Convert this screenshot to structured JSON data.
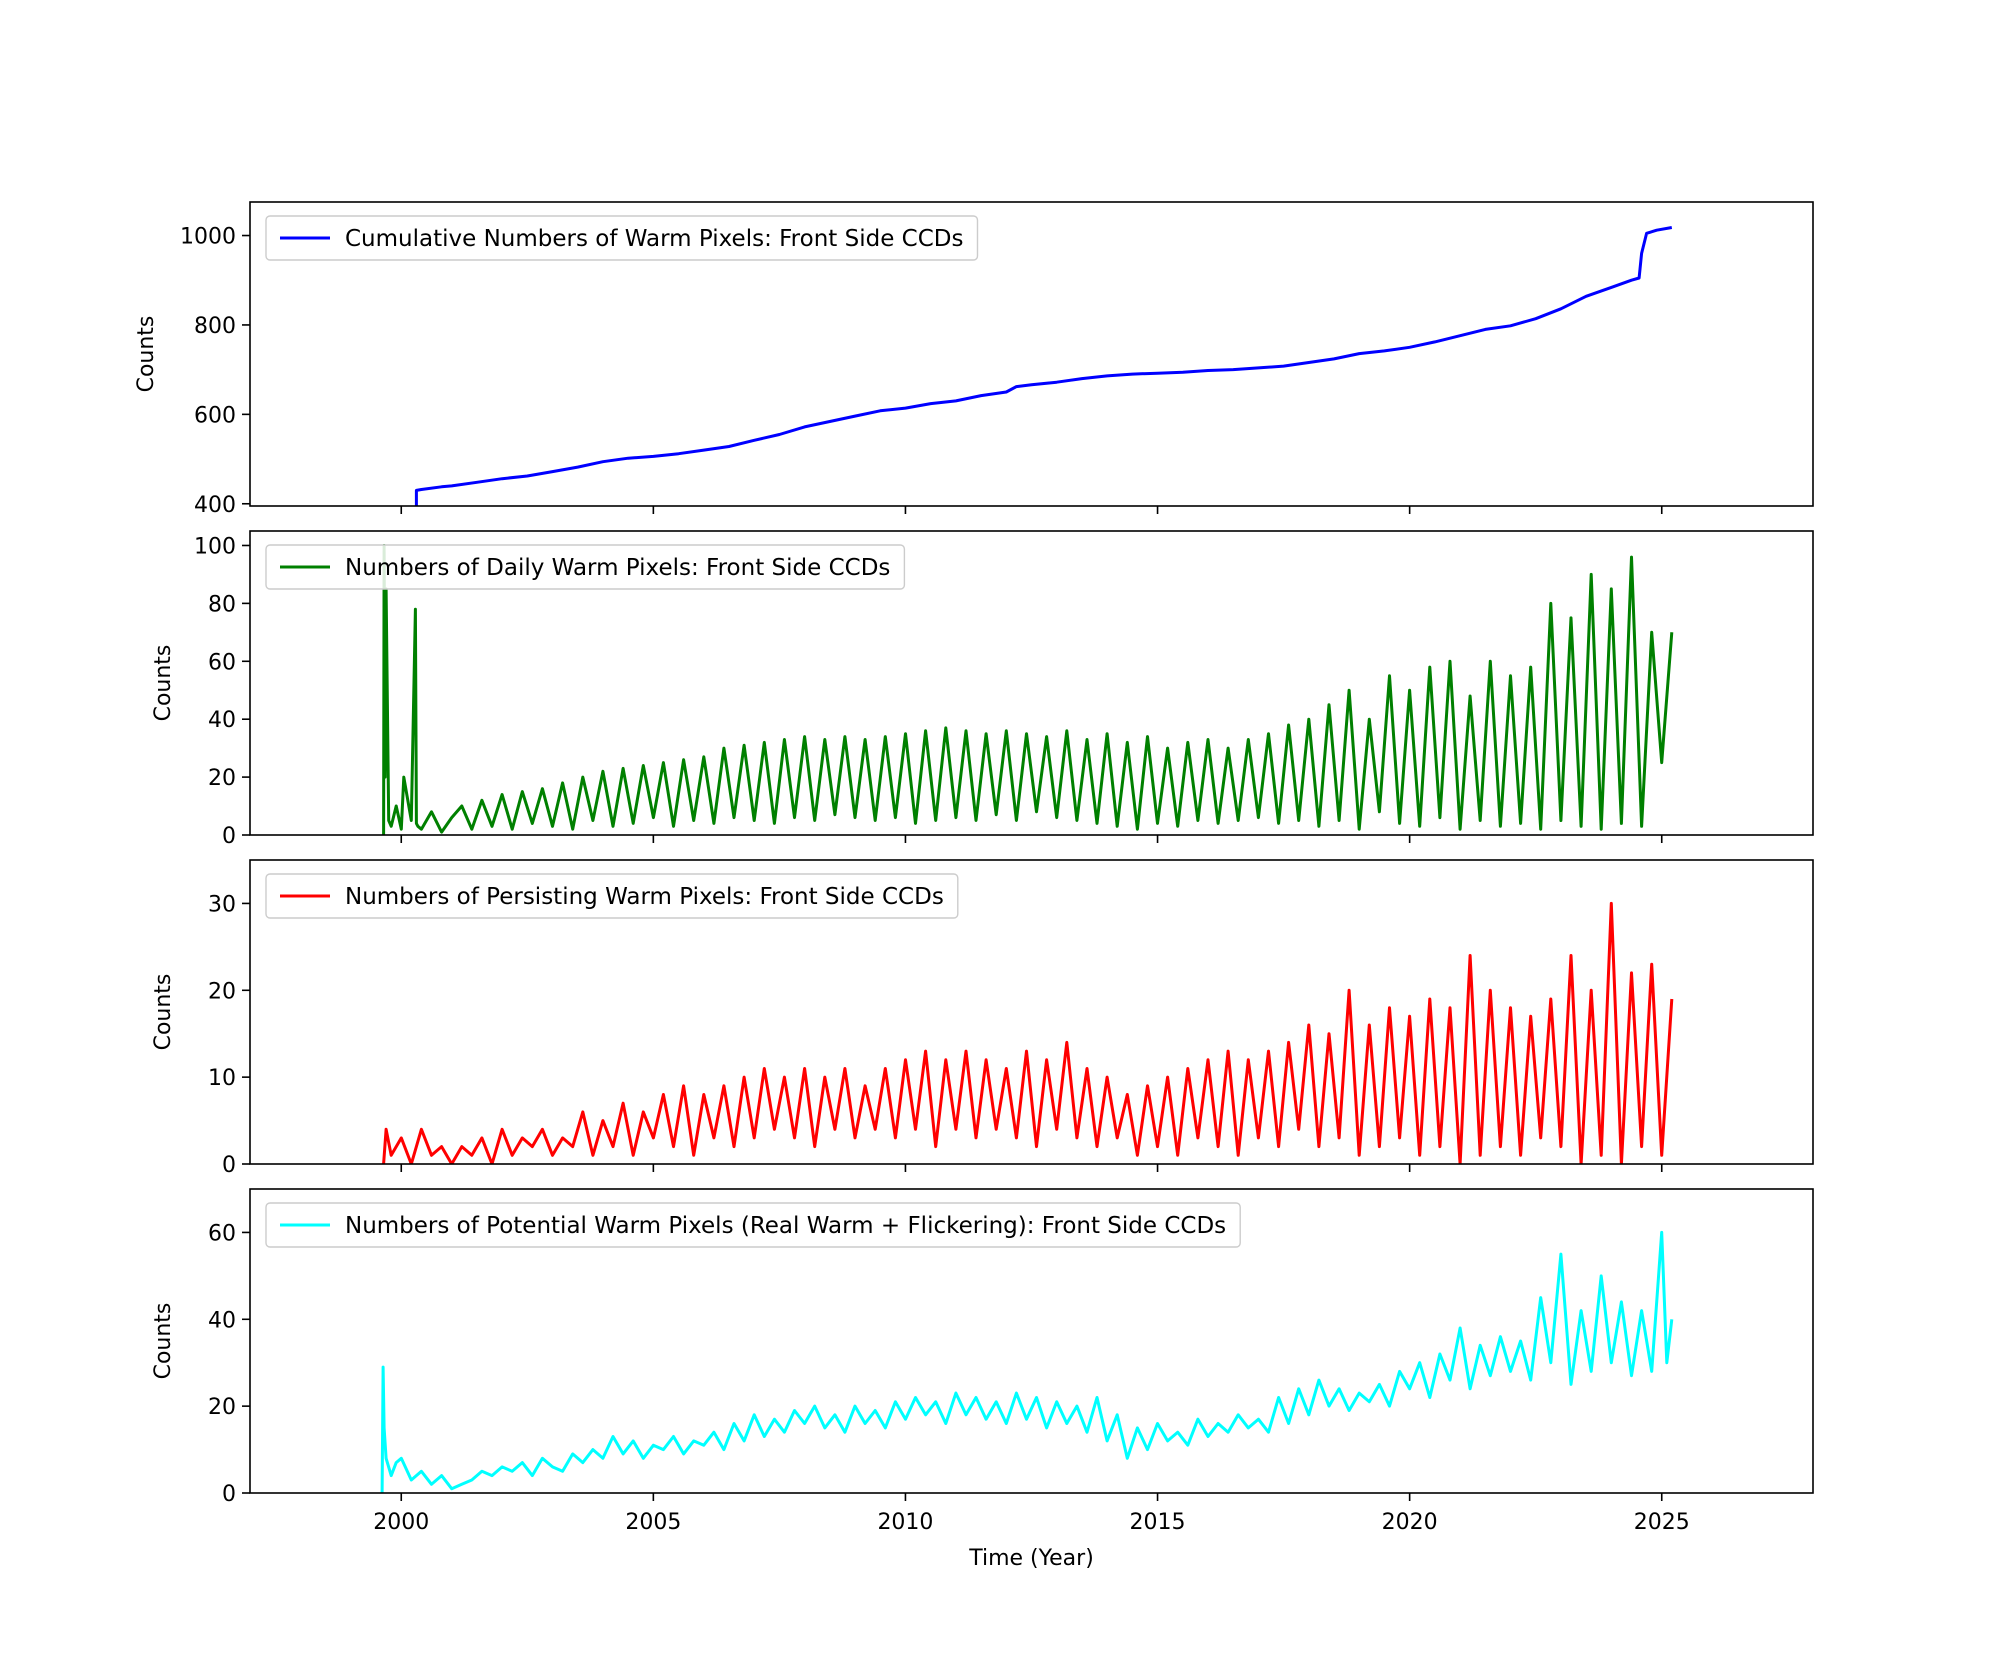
{
  "chart_data": [
    {
      "type": "line",
      "ylabel": "Counts",
      "xlabel": "",
      "xlim": [
        1997.0,
        2028.0
      ],
      "ylim": [
        395,
        1075
      ],
      "yticks": [
        400,
        600,
        800,
        1000
      ],
      "xticks": [
        2000,
        2005,
        2010,
        2015,
        2020,
        2025
      ],
      "show_xtick_labels": false,
      "legend_position": "top-left",
      "series": [
        {
          "name": "Cumulative Numbers of Warm Pixels: Front Side CCDs",
          "color": "#0000ff",
          "x": [
            2000.3,
            2000.3,
            2000.4,
            2000.8,
            2001.0,
            2001.5,
            2002.0,
            2002.5,
            2003.0,
            2003.5,
            2004.0,
            2004.5,
            2005.0,
            2005.5,
            2006.0,
            2006.5,
            2007.0,
            2007.5,
            2008.0,
            2008.5,
            2009.0,
            2009.5,
            2010.0,
            2010.5,
            2011.0,
            2011.5,
            2012.0,
            2012.2,
            2012.5,
            2013.0,
            2013.5,
            2014.0,
            2014.5,
            2015.0,
            2015.5,
            2016.0,
            2016.5,
            2017.0,
            2017.5,
            2018.0,
            2018.5,
            2019.0,
            2019.5,
            2020.0,
            2020.5,
            2021.0,
            2021.5,
            2022.0,
            2022.5,
            2023.0,
            2023.5,
            2024.0,
            2024.4,
            2024.55,
            2024.6,
            2024.7,
            2024.9,
            2025.2
          ],
          "y": [
            395,
            430,
            432,
            438,
            440,
            448,
            456,
            462,
            472,
            482,
            494,
            502,
            506,
            512,
            520,
            528,
            542,
            555,
            572,
            584,
            596,
            608,
            614,
            624,
            630,
            642,
            650,
            662,
            666,
            672,
            680,
            686,
            690,
            692,
            694,
            698,
            700,
            704,
            708,
            716,
            724,
            736,
            742,
            750,
            762,
            776,
            790,
            798,
            814,
            836,
            864,
            884,
            900,
            905,
            960,
            1005,
            1012,
            1018
          ]
        }
      ]
    },
    {
      "type": "line",
      "ylabel": "Counts",
      "xlabel": "",
      "xlim": [
        1997.0,
        2028.0
      ],
      "ylim": [
        0,
        105
      ],
      "yticks": [
        0,
        20,
        40,
        60,
        80,
        100
      ],
      "xticks": [
        2000,
        2005,
        2010,
        2015,
        2020,
        2025
      ],
      "show_xtick_labels": false,
      "legend_position": "top-left",
      "series": [
        {
          "name": "Numbers of Daily Warm Pixels: Front Side CCDs",
          "color": "#008000",
          "x": [
            1999.65,
            1999.66,
            1999.68,
            1999.7,
            1999.75,
            1999.8,
            1999.9,
            2000.0,
            2000.05,
            2000.2,
            2000.28,
            2000.3,
            2000.33,
            2000.4,
            2000.6,
            2000.8,
            2001.0,
            2001.2,
            2001.4,
            2001.6,
            2001.8,
            2002.0,
            2002.2,
            2002.4,
            2002.6,
            2002.8,
            2003.0,
            2003.2,
            2003.4,
            2003.6,
            2003.8,
            2004.0,
            2004.2,
            2004.4,
            2004.6,
            2004.8,
            2005.0,
            2005.2,
            2005.4,
            2005.6,
            2005.8,
            2006.0,
            2006.2,
            2006.4,
            2006.6,
            2006.8,
            2007.0,
            2007.2,
            2007.4,
            2007.6,
            2007.8,
            2008.0,
            2008.2,
            2008.4,
            2008.6,
            2008.8,
            2009.0,
            2009.2,
            2009.4,
            2009.6,
            2009.8,
            2010.0,
            2010.2,
            2010.4,
            2010.6,
            2010.8,
            2011.0,
            2011.2,
            2011.4,
            2011.6,
            2011.8,
            2012.0,
            2012.2,
            2012.4,
            2012.6,
            2012.8,
            2013.0,
            2013.2,
            2013.4,
            2013.6,
            2013.8,
            2014.0,
            2014.2,
            2014.4,
            2014.6,
            2014.8,
            2015.0,
            2015.2,
            2015.4,
            2015.6,
            2015.8,
            2016.0,
            2016.2,
            2016.4,
            2016.6,
            2016.8,
            2017.0,
            2017.2,
            2017.4,
            2017.6,
            2017.8,
            2018.0,
            2018.2,
            2018.4,
            2018.6,
            2018.8,
            2019.0,
            2019.2,
            2019.4,
            2019.6,
            2019.8,
            2020.0,
            2020.2,
            2020.4,
            2020.6,
            2020.8,
            2021.0,
            2021.2,
            2021.4,
            2021.6,
            2021.8,
            2022.0,
            2022.2,
            2022.4,
            2022.6,
            2022.8,
            2023.0,
            2023.2,
            2023.4,
            2023.6,
            2023.8,
            2024.0,
            2024.2,
            2024.4,
            2024.6,
            2024.8,
            2025.0,
            2025.2
          ],
          "y": [
            0,
            100,
            20,
            85,
            5,
            3,
            10,
            2,
            20,
            5,
            78,
            4,
            3,
            2,
            8,
            1,
            6,
            10,
            2,
            12,
            3,
            14,
            2,
            15,
            4,
            16,
            3,
            18,
            2,
            20,
            5,
            22,
            3,
            23,
            4,
            24,
            6,
            25,
            3,
            26,
            5,
            27,
            4,
            30,
            6,
            31,
            5,
            32,
            4,
            33,
            6,
            34,
            5,
            33,
            7,
            34,
            6,
            33,
            5,
            34,
            6,
            35,
            4,
            36,
            5,
            37,
            6,
            36,
            5,
            35,
            7,
            36,
            5,
            35,
            8,
            34,
            6,
            36,
            5,
            33,
            4,
            35,
            3,
            32,
            2,
            34,
            4,
            30,
            3,
            32,
            5,
            33,
            4,
            30,
            5,
            33,
            6,
            35,
            4,
            38,
            5,
            40,
            3,
            45,
            5,
            50,
            2,
            40,
            8,
            55,
            4,
            50,
            3,
            58,
            6,
            60,
            2,
            48,
            5,
            60,
            3,
            55,
            4,
            58,
            2,
            80,
            5,
            75,
            3,
            90,
            2,
            85,
            4,
            96,
            3,
            70,
            25,
            70
          ]
        }
      ]
    },
    {
      "type": "line",
      "ylabel": "Counts",
      "xlabel": "",
      "xlim": [
        1997.0,
        2028.0
      ],
      "ylim": [
        0,
        35
      ],
      "yticks": [
        0,
        10,
        20,
        30
      ],
      "xticks": [
        2000,
        2005,
        2010,
        2015,
        2020,
        2025
      ],
      "show_xtick_labels": false,
      "legend_position": "top-left",
      "series": [
        {
          "name": "Numbers of Persisting Warm Pixels: Front Side CCDs",
          "color": "#ff0000",
          "x": [
            1999.65,
            1999.7,
            1999.8,
            2000.0,
            2000.2,
            2000.4,
            2000.6,
            2000.8,
            2001.0,
            2001.2,
            2001.4,
            2001.6,
            2001.8,
            2002.0,
            2002.2,
            2002.4,
            2002.6,
            2002.8,
            2003.0,
            2003.2,
            2003.4,
            2003.6,
            2003.8,
            2004.0,
            2004.2,
            2004.4,
            2004.6,
            2004.8,
            2005.0,
            2005.2,
            2005.4,
            2005.6,
            2005.8,
            2006.0,
            2006.2,
            2006.4,
            2006.6,
            2006.8,
            2007.0,
            2007.2,
            2007.4,
            2007.6,
            2007.8,
            2008.0,
            2008.2,
            2008.4,
            2008.6,
            2008.8,
            2009.0,
            2009.2,
            2009.4,
            2009.6,
            2009.8,
            2010.0,
            2010.2,
            2010.4,
            2010.6,
            2010.8,
            2011.0,
            2011.2,
            2011.4,
            2011.6,
            2011.8,
            2012.0,
            2012.2,
            2012.4,
            2012.6,
            2012.8,
            2013.0,
            2013.2,
            2013.4,
            2013.6,
            2013.8,
            2014.0,
            2014.2,
            2014.4,
            2014.6,
            2014.8,
            2015.0,
            2015.2,
            2015.4,
            2015.6,
            2015.8,
            2016.0,
            2016.2,
            2016.4,
            2016.6,
            2016.8,
            2017.0,
            2017.2,
            2017.4,
            2017.6,
            2017.8,
            2018.0,
            2018.2,
            2018.4,
            2018.6,
            2018.8,
            2019.0,
            2019.2,
            2019.4,
            2019.6,
            2019.8,
            2020.0,
            2020.2,
            2020.4,
            2020.6,
            2020.8,
            2021.0,
            2021.2,
            2021.4,
            2021.6,
            2021.8,
            2022.0,
            2022.2,
            2022.4,
            2022.6,
            2022.8,
            2023.0,
            2023.2,
            2023.4,
            2023.6,
            2023.8,
            2024.0,
            2024.2,
            2024.4,
            2024.6,
            2024.8,
            2025.0,
            2025.2
          ],
          "y": [
            0,
            4,
            1,
            3,
            0,
            4,
            1,
            2,
            0,
            2,
            1,
            3,
            0,
            4,
            1,
            3,
            2,
            4,
            1,
            3,
            2,
            6,
            1,
            5,
            2,
            7,
            1,
            6,
            3,
            8,
            2,
            9,
            1,
            8,
            3,
            9,
            2,
            10,
            3,
            11,
            4,
            10,
            3,
            11,
            2,
            10,
            4,
            11,
            3,
            9,
            4,
            11,
            3,
            12,
            4,
            13,
            2,
            12,
            4,
            13,
            3,
            12,
            4,
            11,
            3,
            13,
            2,
            12,
            4,
            14,
            3,
            11,
            2,
            10,
            3,
            8,
            1,
            9,
            2,
            10,
            1,
            11,
            3,
            12,
            2,
            13,
            1,
            12,
            3,
            13,
            2,
            14,
            4,
            16,
            2,
            15,
            3,
            20,
            1,
            16,
            2,
            18,
            3,
            17,
            1,
            19,
            2,
            18,
            0,
            24,
            1,
            20,
            2,
            18,
            1,
            17,
            3,
            19,
            2,
            24,
            0,
            20,
            1,
            30,
            0,
            22,
            2,
            23,
            1,
            19
          ]
        }
      ]
    },
    {
      "type": "line",
      "ylabel": "Counts",
      "xlabel": "Time (Year)",
      "xlim": [
        1997.0,
        2028.0
      ],
      "ylim": [
        0,
        70
      ],
      "yticks": [
        0,
        20,
        40,
        60
      ],
      "xticks": [
        2000,
        2005,
        2010,
        2015,
        2020,
        2025
      ],
      "show_xtick_labels": true,
      "legend_position": "top-left",
      "series": [
        {
          "name": "Numbers of Potential Warm Pixels (Real Warm + Flickering): Front Side CCDs",
          "color": "#00ffff",
          "x": [
            1999.62,
            1999.64,
            1999.66,
            1999.7,
            1999.8,
            1999.9,
            2000.0,
            2000.2,
            2000.4,
            2000.6,
            2000.8,
            2001.0,
            2001.2,
            2001.4,
            2001.6,
            2001.8,
            2002.0,
            2002.2,
            2002.4,
            2002.6,
            2002.8,
            2003.0,
            2003.2,
            2003.4,
            2003.6,
            2003.8,
            2004.0,
            2004.2,
            2004.4,
            2004.6,
            2004.8,
            2005.0,
            2005.2,
            2005.4,
            2005.6,
            2005.8,
            2006.0,
            2006.2,
            2006.4,
            2006.6,
            2006.8,
            2007.0,
            2007.2,
            2007.4,
            2007.6,
            2007.8,
            2008.0,
            2008.2,
            2008.4,
            2008.6,
            2008.8,
            2009.0,
            2009.2,
            2009.4,
            2009.6,
            2009.8,
            2010.0,
            2010.2,
            2010.4,
            2010.6,
            2010.8,
            2011.0,
            2011.2,
            2011.4,
            2011.6,
            2011.8,
            2012.0,
            2012.2,
            2012.4,
            2012.6,
            2012.8,
            2013.0,
            2013.2,
            2013.4,
            2013.6,
            2013.8,
            2014.0,
            2014.2,
            2014.4,
            2014.6,
            2014.8,
            2015.0,
            2015.2,
            2015.4,
            2015.6,
            2015.8,
            2016.0,
            2016.2,
            2016.4,
            2016.6,
            2016.8,
            2017.0,
            2017.2,
            2017.4,
            2017.6,
            2017.8,
            2018.0,
            2018.2,
            2018.4,
            2018.6,
            2018.8,
            2019.0,
            2019.2,
            2019.4,
            2019.6,
            2019.8,
            2020.0,
            2020.2,
            2020.4,
            2020.6,
            2020.8,
            2021.0,
            2021.2,
            2021.4,
            2021.6,
            2021.8,
            2022.0,
            2022.2,
            2022.4,
            2022.6,
            2022.8,
            2023.0,
            2023.2,
            2023.4,
            2023.6,
            2023.8,
            2024.0,
            2024.2,
            2024.4,
            2024.6,
            2024.8,
            2025.0,
            2025.1,
            2025.2
          ],
          "y": [
            0,
            29,
            15,
            8,
            4,
            7,
            8,
            3,
            5,
            2,
            4,
            1,
            2,
            3,
            5,
            4,
            6,
            5,
            7,
            4,
            8,
            6,
            5,
            9,
            7,
            10,
            8,
            13,
            9,
            12,
            8,
            11,
            10,
            13,
            9,
            12,
            11,
            14,
            10,
            16,
            12,
            18,
            13,
            17,
            14,
            19,
            16,
            20,
            15,
            18,
            14,
            20,
            16,
            19,
            15,
            21,
            17,
            22,
            18,
            21,
            16,
            23,
            18,
            22,
            17,
            21,
            16,
            23,
            17,
            22,
            15,
            21,
            16,
            20,
            14,
            22,
            12,
            18,
            8,
            15,
            10,
            16,
            12,
            14,
            11,
            17,
            13,
            16,
            14,
            18,
            15,
            17,
            14,
            22,
            16,
            24,
            18,
            26,
            20,
            24,
            19,
            23,
            21,
            25,
            20,
            28,
            24,
            30,
            22,
            32,
            26,
            38,
            24,
            34,
            27,
            36,
            28,
            35,
            26,
            45,
            30,
            55,
            25,
            42,
            28,
            50,
            30,
            44,
            27,
            42,
            28,
            60,
            30,
            40
          ]
        }
      ]
    }
  ]
}
